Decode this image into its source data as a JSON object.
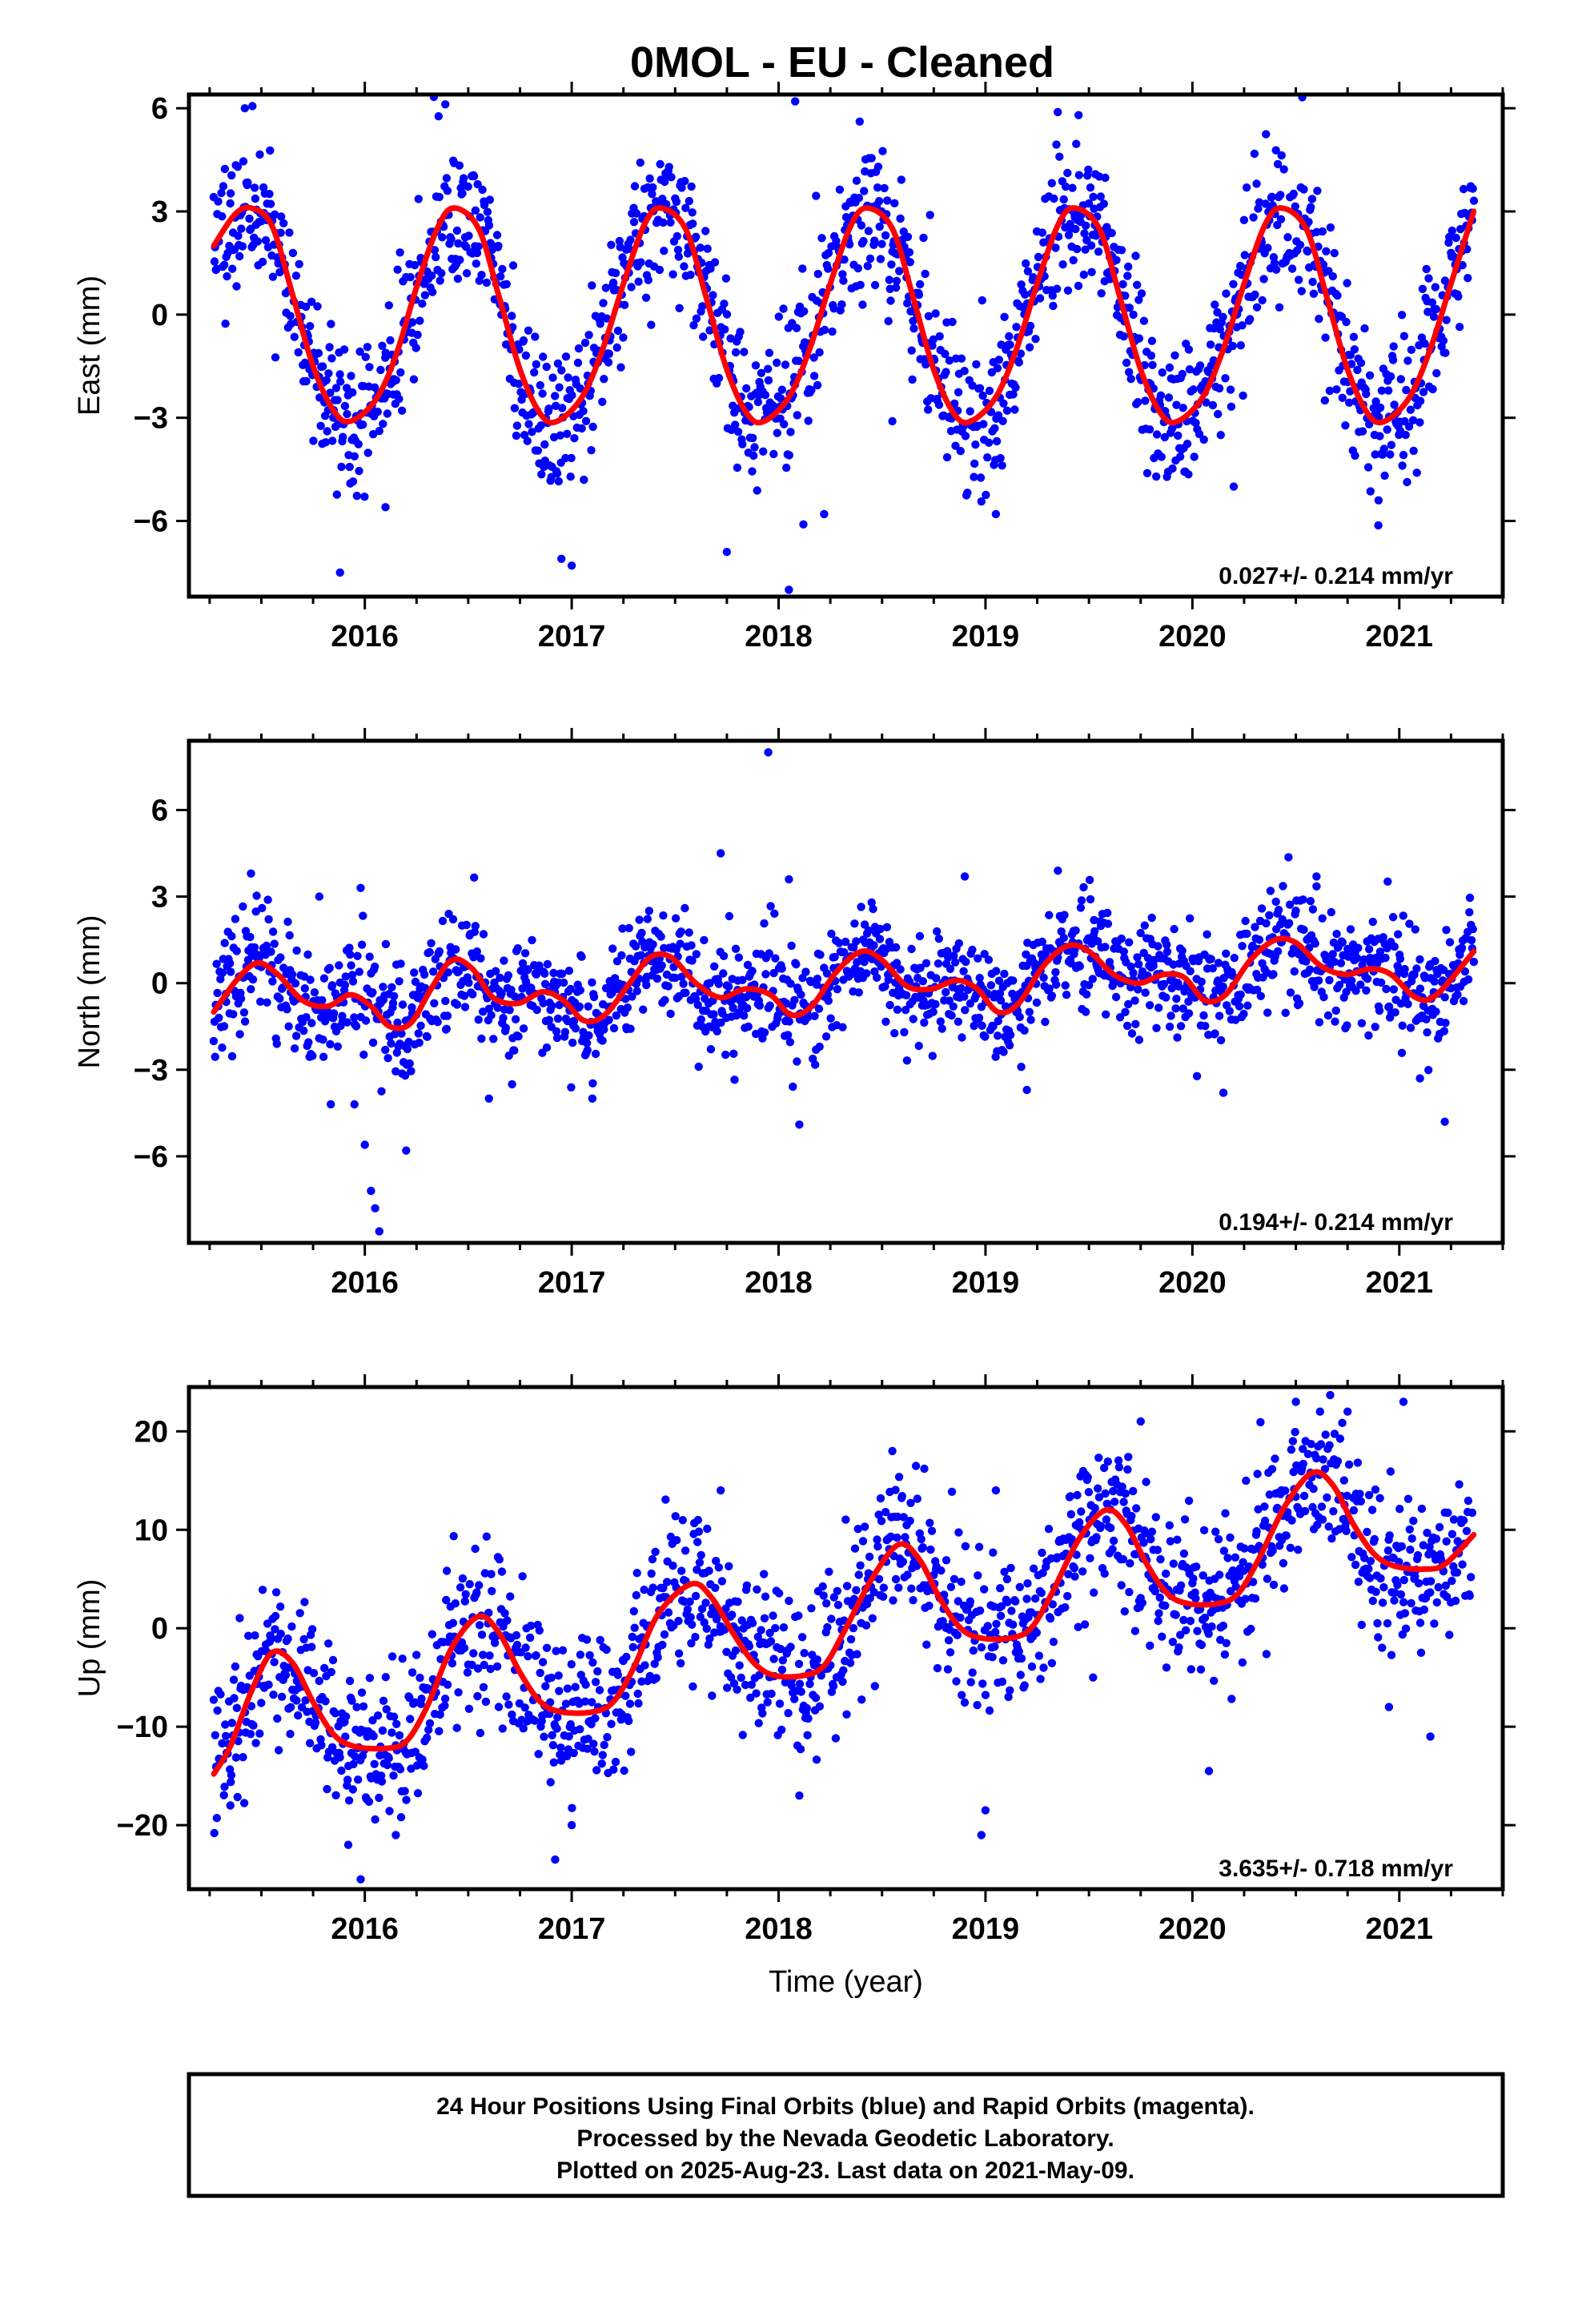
{
  "title": "0MOL  - EU - Cleaned",
  "footer": {
    "lines": [
      "24 Hour Positions Using Final Orbits (blue) and Rapid Orbits (magenta).",
      "Processed by the Nevada Geodetic Laboratory.",
      "Plotted on 2025-Aug-23. Last data on 2021-May-09."
    ]
  },
  "colors": {
    "points": "#0000ff",
    "fit": "#ff0000",
    "frame": "#000000"
  },
  "chart_data": [
    {
      "type": "scatter",
      "ylabel": "East (mm)",
      "xlabel": "",
      "xlim": [
        2015.15,
        2021.5
      ],
      "ylim": [
        -8.2,
        6.4
      ],
      "x_ticks": [
        2016,
        2017,
        2018,
        2019,
        2020,
        2021
      ],
      "y_ticks": [
        {
          "v": -6,
          "label": "−6"
        },
        {
          "v": -3,
          "label": "−3"
        },
        {
          "v": 0,
          "label": "0"
        },
        {
          "v": 3,
          "label": "3"
        },
        {
          "v": 6,
          "label": "6"
        }
      ],
      "rate": "0.027+/- 0.214 mm/yr",
      "model": {
        "x0": 2015.27,
        "x1": 2021.36,
        "fit": [
          [
            2015.27,
            2.0
          ],
          [
            2015.37,
            2.9
          ],
          [
            2015.45,
            3.1
          ],
          [
            2015.55,
            2.6
          ],
          [
            2015.65,
            0.6
          ],
          [
            2015.75,
            -1.5
          ],
          [
            2015.85,
            -2.8
          ],
          [
            2015.93,
            -3.1
          ],
          [
            2016.05,
            -2.5
          ],
          [
            2016.15,
            -1.2
          ],
          [
            2016.25,
            0.8
          ],
          [
            2016.35,
            2.5
          ],
          [
            2016.43,
            3.1
          ],
          [
            2016.55,
            2.5
          ],
          [
            2016.65,
            0.5
          ],
          [
            2016.75,
            -1.6
          ],
          [
            2016.85,
            -2.9
          ],
          [
            2016.93,
            -3.1
          ],
          [
            2017.05,
            -2.4
          ],
          [
            2017.15,
            -1.0
          ],
          [
            2017.25,
            0.9
          ],
          [
            2017.35,
            2.6
          ],
          [
            2017.43,
            3.1
          ],
          [
            2017.55,
            2.5
          ],
          [
            2017.65,
            0.5
          ],
          [
            2017.75,
            -1.6
          ],
          [
            2017.85,
            -2.9
          ],
          [
            2017.93,
            -3.1
          ],
          [
            2018.05,
            -2.4
          ],
          [
            2018.15,
            -1.0
          ],
          [
            2018.25,
            0.9
          ],
          [
            2018.35,
            2.6
          ],
          [
            2018.43,
            3.1
          ],
          [
            2018.55,
            2.5
          ],
          [
            2018.65,
            0.5
          ],
          [
            2018.75,
            -1.6
          ],
          [
            2018.85,
            -2.9
          ],
          [
            2018.93,
            -3.1
          ],
          [
            2019.05,
            -2.4
          ],
          [
            2019.15,
            -1.0
          ],
          [
            2019.25,
            0.9
          ],
          [
            2019.35,
            2.6
          ],
          [
            2019.43,
            3.1
          ],
          [
            2019.55,
            2.5
          ],
          [
            2019.65,
            0.5
          ],
          [
            2019.75,
            -1.6
          ],
          [
            2019.85,
            -2.9
          ],
          [
            2019.93,
            -3.1
          ],
          [
            2020.05,
            -2.4
          ],
          [
            2020.15,
            -1.0
          ],
          [
            2020.25,
            0.9
          ],
          [
            2020.35,
            2.6
          ],
          [
            2020.43,
            3.1
          ],
          [
            2020.55,
            2.5
          ],
          [
            2020.65,
            0.5
          ],
          [
            2020.75,
            -1.6
          ],
          [
            2020.85,
            -2.9
          ],
          [
            2020.93,
            -3.1
          ],
          [
            2021.05,
            -2.4
          ],
          [
            2021.15,
            -1.0
          ],
          [
            2021.25,
            0.9
          ],
          [
            2021.36,
            3.0
          ]
        ],
        "noise": 1.1,
        "seed": 11,
        "count": 1700
      },
      "outliers": [
        [
          2015.42,
          6.0
        ],
        [
          2015.88,
          -7.5
        ],
        [
          2016.1,
          -5.6
        ],
        [
          2016.95,
          -7.1
        ],
        [
          2017.0,
          -7.3
        ],
        [
          2017.75,
          -6.9
        ],
        [
          2018.05,
          -8.0
        ],
        [
          2018.08,
          6.2
        ],
        [
          2018.12,
          -6.1
        ],
        [
          2018.22,
          -5.8
        ],
        [
          2018.55,
          -3.1
        ],
        [
          2019.05,
          -5.8
        ],
        [
          2019.45,
          5.8
        ],
        [
          2020.2,
          -5.0
        ],
        [
          2020.9,
          -5.4
        ]
      ]
    },
    {
      "type": "scatter",
      "ylabel": "North (mm)",
      "xlabel": "",
      "xlim": [
        2015.15,
        2021.5
      ],
      "ylim": [
        -9.0,
        8.4
      ],
      "x_ticks": [
        2016,
        2017,
        2018,
        2019,
        2020,
        2021
      ],
      "y_ticks": [
        {
          "v": -6,
          "label": "−6"
        },
        {
          "v": -3,
          "label": "−3"
        },
        {
          "v": 0,
          "label": "0"
        },
        {
          "v": 3,
          "label": "3"
        },
        {
          "v": 6,
          "label": "6"
        }
      ],
      "rate": "0.194+/- 0.214 mm/yr",
      "model": {
        "x0": 2015.27,
        "x1": 2021.36,
        "fit": [
          [
            2015.27,
            -1.0
          ],
          [
            2015.38,
            0.1
          ],
          [
            2015.48,
            0.7
          ],
          [
            2015.58,
            0.3
          ],
          [
            2015.7,
            -0.6
          ],
          [
            2015.82,
            -0.8
          ],
          [
            2015.93,
            -0.4
          ],
          [
            2016.03,
            -0.8
          ],
          [
            2016.12,
            -1.5
          ],
          [
            2016.22,
            -1.4
          ],
          [
            2016.32,
            -0.2
          ],
          [
            2016.42,
            0.8
          ],
          [
            2016.52,
            0.5
          ],
          [
            2016.62,
            -0.5
          ],
          [
            2016.74,
            -0.7
          ],
          [
            2016.86,
            -0.3
          ],
          [
            2016.96,
            -0.6
          ],
          [
            2017.06,
            -1.3
          ],
          [
            2017.16,
            -1.1
          ],
          [
            2017.28,
            0.0
          ],
          [
            2017.38,
            0.9
          ],
          [
            2017.48,
            0.9
          ],
          [
            2017.6,
            0.0
          ],
          [
            2017.72,
            -0.5
          ],
          [
            2017.84,
            -0.2
          ],
          [
            2017.96,
            -0.4
          ],
          [
            2018.06,
            -1.1
          ],
          [
            2018.16,
            -0.8
          ],
          [
            2018.28,
            0.4
          ],
          [
            2018.4,
            1.1
          ],
          [
            2018.5,
            0.8
          ],
          [
            2018.62,
            -0.1
          ],
          [
            2018.74,
            -0.2
          ],
          [
            2018.86,
            0.1
          ],
          [
            2018.96,
            -0.2
          ],
          [
            2019.06,
            -1.0
          ],
          [
            2019.16,
            -0.7
          ],
          [
            2019.28,
            0.6
          ],
          [
            2019.4,
            1.3
          ],
          [
            2019.5,
            1.1
          ],
          [
            2019.62,
            0.3
          ],
          [
            2019.74,
            0.0
          ],
          [
            2019.86,
            0.3
          ],
          [
            2019.96,
            0.2
          ],
          [
            2020.06,
            -0.6
          ],
          [
            2020.16,
            -0.4
          ],
          [
            2020.28,
            0.8
          ],
          [
            2020.4,
            1.5
          ],
          [
            2020.5,
            1.4
          ],
          [
            2020.62,
            0.6
          ],
          [
            2020.74,
            0.3
          ],
          [
            2020.86,
            0.5
          ],
          [
            2020.96,
            0.3
          ],
          [
            2021.08,
            -0.5
          ],
          [
            2021.18,
            -0.4
          ],
          [
            2021.36,
            1.1
          ]
        ],
        "noise": 0.95,
        "seed": 23,
        "count": 1700
      },
      "outliers": [
        [
          2015.45,
          3.8
        ],
        [
          2015.78,
          3.0
        ],
        [
          2015.95,
          -4.2
        ],
        [
          2016.0,
          -5.6
        ],
        [
          2016.03,
          -7.2
        ],
        [
          2016.05,
          -7.8
        ],
        [
          2016.07,
          -8.6
        ],
        [
          2015.98,
          3.3
        ],
        [
          2016.2,
          -5.8
        ],
        [
          2016.6,
          -4.0
        ],
        [
          2017.1,
          -4.0
        ],
        [
          2017.72,
          4.5
        ],
        [
          2017.95,
          8.0
        ],
        [
          2018.05,
          3.6
        ],
        [
          2018.1,
          -4.9
        ],
        [
          2018.9,
          3.7
        ],
        [
          2019.2,
          -3.7
        ],
        [
          2019.35,
          3.9
        ],
        [
          2020.15,
          -3.8
        ],
        [
          2020.6,
          3.7
        ],
        [
          2021.1,
          -3.3
        ],
        [
          2021.22,
          -4.8
        ]
      ]
    },
    {
      "type": "scatter",
      "ylabel": "Up (mm)",
      "xlabel": "Time (year)",
      "xlim": [
        2015.15,
        2021.5
      ],
      "ylim": [
        -26.5,
        24.5
      ],
      "x_ticks": [
        2016,
        2017,
        2018,
        2019,
        2020,
        2021
      ],
      "y_ticks": [
        {
          "v": -20,
          "label": "−20"
        },
        {
          "v": -10,
          "label": "−10"
        },
        {
          "v": 0,
          "label": "0"
        },
        {
          "v": 10,
          "label": "10"
        },
        {
          "v": 20,
          "label": "20"
        }
      ],
      "rate": "3.635+/- 0.718 mm/yr",
      "model": {
        "x0": 2015.27,
        "x1": 2021.36,
        "fit": [
          [
            2015.27,
            -14.8
          ],
          [
            2015.35,
            -12.0
          ],
          [
            2015.45,
            -6.5
          ],
          [
            2015.55,
            -2.5
          ],
          [
            2015.65,
            -3.5
          ],
          [
            2015.75,
            -7.5
          ],
          [
            2015.85,
            -10.8
          ],
          [
            2015.95,
            -12.0
          ],
          [
            2016.1,
            -12.2
          ],
          [
            2016.2,
            -11.5
          ],
          [
            2016.3,
            -8.0
          ],
          [
            2016.42,
            -2.0
          ],
          [
            2016.55,
            1.2
          ],
          [
            2016.65,
            -0.5
          ],
          [
            2016.75,
            -4.5
          ],
          [
            2016.85,
            -7.5
          ],
          [
            2016.95,
            -8.5
          ],
          [
            2017.1,
            -8.5
          ],
          [
            2017.2,
            -7.5
          ],
          [
            2017.3,
            -4.0
          ],
          [
            2017.42,
            1.5
          ],
          [
            2017.58,
            4.5
          ],
          [
            2017.68,
            3.0
          ],
          [
            2017.78,
            -0.5
          ],
          [
            2017.88,
            -3.5
          ],
          [
            2017.98,
            -4.8
          ],
          [
            2018.12,
            -4.8
          ],
          [
            2018.22,
            -3.8
          ],
          [
            2018.32,
            -0.2
          ],
          [
            2018.45,
            5.0
          ],
          [
            2018.58,
            8.5
          ],
          [
            2018.68,
            7.0
          ],
          [
            2018.78,
            3.0
          ],
          [
            2018.88,
            0.0
          ],
          [
            2018.98,
            -1.0
          ],
          [
            2019.12,
            -1.0
          ],
          [
            2019.22,
            0.0
          ],
          [
            2019.32,
            3.5
          ],
          [
            2019.45,
            9.0
          ],
          [
            2019.58,
            12.0
          ],
          [
            2019.68,
            10.5
          ],
          [
            2019.78,
            6.5
          ],
          [
            2019.88,
            3.5
          ],
          [
            2019.98,
            2.5
          ],
          [
            2020.12,
            2.5
          ],
          [
            2020.22,
            3.5
          ],
          [
            2020.32,
            7.0
          ],
          [
            2020.45,
            12.5
          ],
          [
            2020.58,
            15.8
          ],
          [
            2020.68,
            14.5
          ],
          [
            2020.78,
            10.5
          ],
          [
            2020.88,
            7.5
          ],
          [
            2020.98,
            6.3
          ],
          [
            2021.12,
            6.0
          ],
          [
            2021.22,
            6.5
          ],
          [
            2021.36,
            9.5
          ]
        ],
        "noise": 4.0,
        "seed": 37,
        "count": 1650
      },
      "outliers": [
        [
          2015.35,
          -18.0
        ],
        [
          2015.98,
          -25.5
        ],
        [
          2015.92,
          -22.0
        ],
        [
          2016.15,
          -21.0
        ],
        [
          2016.92,
          -23.5
        ],
        [
          2017.0,
          -20.0
        ],
        [
          2017.72,
          14.0
        ],
        [
          2018.1,
          -17.0
        ],
        [
          2018.55,
          18.0
        ],
        [
          2018.98,
          -21.0
        ],
        [
          2019.0,
          -18.5
        ],
        [
          2019.05,
          14.0
        ],
        [
          2019.52,
          -5.0
        ],
        [
          2019.75,
          21.0
        ],
        [
          2020.08,
          -14.5
        ],
        [
          2020.5,
          23.0
        ],
        [
          2020.75,
          22.0
        ],
        [
          2021.02,
          23.0
        ],
        [
          2020.95,
          -8.0
        ],
        [
          2021.15,
          -11.0
        ]
      ]
    }
  ]
}
